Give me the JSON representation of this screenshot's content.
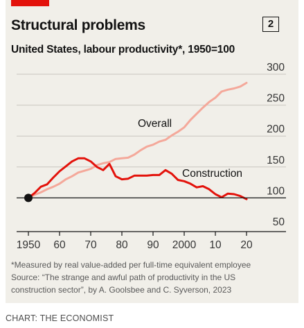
{
  "badge": "2",
  "footnote": {
    "line1": "*Measured by real value-added per full-time equivalent employee",
    "line2": "Source: “The strange and awful path of productivity in the US",
    "line3": "construction sector”, by A. Goolsbee and C. Syverson, 2023"
  },
  "credit": "CHART: THE ECONOMIST",
  "colors": {
    "background": "#f1efe9",
    "overall": "#f4a89a",
    "construction": "#e3120b",
    "baseline": "#121212",
    "grid": "#c9c6bf",
    "brand_tab": "#e3120b"
  },
  "chart_data": {
    "type": "line",
    "title": "Structural problems",
    "subtitle": "United States, labour productivity*, 1950=100",
    "xlabel": "",
    "ylabel": "",
    "xlim": [
      1948,
      2024
    ],
    "ylim": [
      50,
      300
    ],
    "y_ticks": [
      50,
      100,
      150,
      200,
      250,
      300
    ],
    "y_tick_labels": [
      "50",
      "100",
      "150",
      "200",
      "250",
      "300"
    ],
    "x_ticks": [
      1950,
      1960,
      1970,
      1980,
      1990,
      2000,
      2010,
      2020
    ],
    "x_tick_labels": [
      "1950",
      "60",
      "70",
      "80",
      "90",
      "2000",
      "10",
      "20"
    ],
    "baseline_value": 100,
    "baseline_marker": {
      "x": 1950,
      "y": 100
    },
    "grid": true,
    "y_axis_position": "right",
    "series": [
      {
        "name": "Overall",
        "x": [
          1950,
          1952,
          1954,
          1956,
          1958,
          1960,
          1962,
          1964,
          1966,
          1968,
          1970,
          1972,
          1974,
          1976,
          1978,
          1980,
          1982,
          1984,
          1986,
          1988,
          1990,
          1992,
          1994,
          1996,
          1998,
          2000,
          2002,
          2004,
          2006,
          2008,
          2010,
          2012,
          2014,
          2016,
          2018,
          2020
        ],
        "values": [
          100,
          105,
          109,
          114,
          118,
          123,
          130,
          135,
          141,
          144,
          147,
          153,
          156,
          158,
          163,
          164,
          165,
          170,
          177,
          183,
          186,
          191,
          194,
          201,
          207,
          214,
          226,
          236,
          246,
          255,
          262,
          272,
          275,
          277,
          280,
          286
        ]
      },
      {
        "name": "Construction",
        "x": [
          1950,
          1952,
          1954,
          1956,
          1958,
          1960,
          1962,
          1964,
          1966,
          1968,
          1970,
          1972,
          1974,
          1976,
          1978,
          1980,
          1982,
          1984,
          1986,
          1988,
          1990,
          1992,
          1994,
          1996,
          1998,
          2000,
          2002,
          2004,
          2006,
          2008,
          2010,
          2012,
          2014,
          2016,
          2018,
          2020
        ],
        "values": [
          100,
          108,
          118,
          122,
          133,
          143,
          151,
          159,
          164,
          164,
          159,
          150,
          145,
          155,
          135,
          130,
          131,
          136,
          136,
          136,
          137,
          137,
          145,
          139,
          129,
          127,
          123,
          117,
          119,
          114,
          106,
          101,
          107,
          106,
          103,
          98
        ]
      }
    ]
  }
}
